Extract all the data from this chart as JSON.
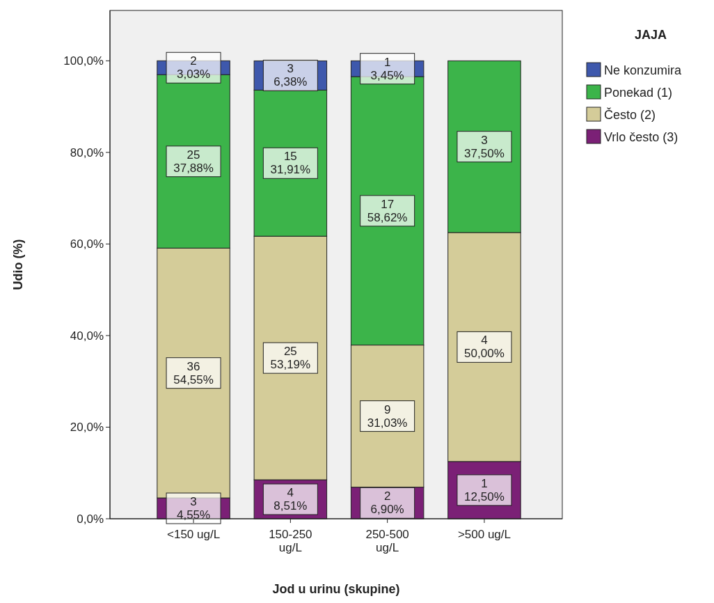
{
  "chart_data": {
    "type": "bar",
    "stacked": true,
    "xlabel": "Jod u urinu (skupine)",
    "ylabel": "Udio (%)",
    "legend_title": "JAJA",
    "legend": "right",
    "categories": [
      "<150 ug/L",
      "150-250 ug/L",
      "250-500 ug/L",
      ">500 ug/L"
    ],
    "ylim": [
      0,
      111
    ],
    "yticks": [
      {
        "value": 0,
        "label": "0,0%"
      },
      {
        "value": 20,
        "label": "20,0%"
      },
      {
        "value": 40,
        "label": "40,0%"
      },
      {
        "value": 60,
        "label": "60,0%"
      },
      {
        "value": 80,
        "label": "80,0%"
      },
      {
        "value": 100,
        "label": "100,0%"
      }
    ],
    "grid": false,
    "series": [
      {
        "name": "Vrlo često (3)",
        "color": "#7b2076",
        "values": [
          4.55,
          8.51,
          6.9,
          12.5
        ],
        "value_labels": [
          "3\n4,55%",
          "4\n8,51%",
          "2\n6,90%",
          "1\n12,50%"
        ]
      },
      {
        "name": "Često (2)",
        "color": "#d4cc99",
        "values": [
          54.55,
          53.19,
          31.03,
          50.0
        ],
        "value_labels": [
          "36\n54,55%",
          "25\n53,19%",
          "9\n31,03%",
          "4\n50,00%"
        ]
      },
      {
        "name": "Ponekad (1)",
        "color": "#3cb44a",
        "values": [
          37.88,
          31.91,
          58.62,
          37.5
        ],
        "value_labels": [
          "25\n37,88%",
          "15\n31,91%",
          "17\n58,62%",
          "3\n37,50%"
        ]
      },
      {
        "name": "Ne konzumira",
        "color": "#3e58ac",
        "values": [
          3.03,
          6.38,
          3.45,
          null
        ],
        "value_labels": [
          "2\n3,03%",
          "3\n6,38%",
          "1\n3,45%",
          null
        ]
      }
    ]
  }
}
